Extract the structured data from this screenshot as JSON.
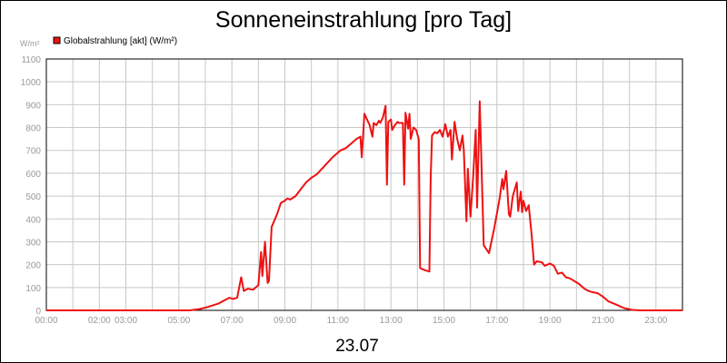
{
  "chart_data": {
    "type": "line",
    "title": "Sonneneinstrahlung [pro Tag]",
    "ylabel": "W/m²",
    "xlabel": "23.07",
    "ylim": [
      0,
      1100
    ],
    "xlim_hours": [
      0,
      24
    ],
    "grid": true,
    "legend_position": "top-left",
    "yticks": [
      "0",
      "100",
      "200",
      "300",
      "400",
      "500",
      "600",
      "700",
      "800",
      "900",
      "1000",
      "1100"
    ],
    "ytick_values": [
      0,
      100,
      200,
      300,
      400,
      500,
      600,
      700,
      800,
      900,
      1000,
      1100
    ],
    "xticks": [
      {
        "label": "00:00",
        "hour": 0
      },
      {
        "label": "02:00",
        "hour": 2
      },
      {
        "label": "03:00",
        "hour": 3
      },
      {
        "label": "05:00",
        "hour": 5
      },
      {
        "label": "07:00",
        "hour": 7
      },
      {
        "label": "09:00",
        "hour": 9
      },
      {
        "label": "11:00",
        "hour": 11
      },
      {
        "label": "13:00",
        "hour": 13
      },
      {
        "label": "15:00",
        "hour": 15
      },
      {
        "label": "17:00",
        "hour": 17
      },
      {
        "label": "19:00",
        "hour": 19
      },
      {
        "label": "21:00",
        "hour": 21
      },
      {
        "label": "23:00",
        "hour": 23
      }
    ],
    "series": [
      {
        "name": "Globalstrahlung [akt] (W/m²)",
        "color": "#ee1111",
        "points": [
          [
            0,
            0
          ],
          [
            5.4,
            0
          ],
          [
            5.8,
            6
          ],
          [
            6.1,
            15
          ],
          [
            6.5,
            30
          ],
          [
            6.9,
            55
          ],
          [
            7.05,
            50
          ],
          [
            7.2,
            55
          ],
          [
            7.35,
            145
          ],
          [
            7.45,
            85
          ],
          [
            7.6,
            95
          ],
          [
            7.8,
            90
          ],
          [
            8.0,
            110
          ],
          [
            8.1,
            255
          ],
          [
            8.15,
            150
          ],
          [
            8.25,
            300
          ],
          [
            8.35,
            120
          ],
          [
            8.4,
            130
          ],
          [
            8.5,
            365
          ],
          [
            8.7,
            420
          ],
          [
            8.85,
            470
          ],
          [
            9.0,
            480
          ],
          [
            9.1,
            490
          ],
          [
            9.2,
            485
          ],
          [
            9.4,
            500
          ],
          [
            9.6,
            530
          ],
          [
            9.8,
            560
          ],
          [
            10.0,
            580
          ],
          [
            10.2,
            595
          ],
          [
            10.4,
            620
          ],
          [
            10.6,
            645
          ],
          [
            10.8,
            670
          ],
          [
            11.0,
            690
          ],
          [
            11.1,
            700
          ],
          [
            11.3,
            710
          ],
          [
            11.5,
            730
          ],
          [
            11.7,
            750
          ],
          [
            11.85,
            760
          ],
          [
            11.9,
            670
          ],
          [
            12.0,
            860
          ],
          [
            12.1,
            835
          ],
          [
            12.2,
            810
          ],
          [
            12.3,
            760
          ],
          [
            12.35,
            820
          ],
          [
            12.45,
            810
          ],
          [
            12.55,
            830
          ],
          [
            12.6,
            820
          ],
          [
            12.7,
            845
          ],
          [
            12.8,
            895
          ],
          [
            12.85,
            550
          ],
          [
            12.9,
            825
          ],
          [
            13.0,
            835
          ],
          [
            13.05,
            790
          ],
          [
            13.15,
            810
          ],
          [
            13.25,
            825
          ],
          [
            13.3,
            820
          ],
          [
            13.45,
            820
          ],
          [
            13.5,
            550
          ],
          [
            13.55,
            865
          ],
          [
            13.6,
            830
          ],
          [
            13.65,
            795
          ],
          [
            13.7,
            860
          ],
          [
            13.75,
            750
          ],
          [
            13.85,
            800
          ],
          [
            13.95,
            790
          ],
          [
            14.05,
            750
          ],
          [
            14.1,
            185
          ],
          [
            14.3,
            175
          ],
          [
            14.45,
            170
          ],
          [
            14.5,
            575
          ],
          [
            14.55,
            765
          ],
          [
            14.65,
            780
          ],
          [
            14.75,
            775
          ],
          [
            14.85,
            790
          ],
          [
            14.95,
            760
          ],
          [
            15.05,
            815
          ],
          [
            15.15,
            760
          ],
          [
            15.25,
            790
          ],
          [
            15.3,
            660
          ],
          [
            15.4,
            825
          ],
          [
            15.5,
            750
          ],
          [
            15.6,
            700
          ],
          [
            15.7,
            765
          ],
          [
            15.75,
            700
          ],
          [
            15.85,
            390
          ],
          [
            15.9,
            620
          ],
          [
            16.0,
            410
          ],
          [
            16.1,
            580
          ],
          [
            16.2,
            790
          ],
          [
            16.25,
            450
          ],
          [
            16.35,
            915
          ],
          [
            16.5,
            285
          ],
          [
            16.7,
            250
          ],
          [
            16.9,
            360
          ],
          [
            17.1,
            490
          ],
          [
            17.2,
            575
          ],
          [
            17.25,
            530
          ],
          [
            17.35,
            610
          ],
          [
            17.45,
            420
          ],
          [
            17.5,
            410
          ],
          [
            17.6,
            500
          ],
          [
            17.75,
            560
          ],
          [
            17.8,
            435
          ],
          [
            17.9,
            520
          ],
          [
            17.95,
            430
          ],
          [
            18.0,
            480
          ],
          [
            18.1,
            435
          ],
          [
            18.2,
            460
          ],
          [
            18.3,
            340
          ],
          [
            18.4,
            200
          ],
          [
            18.5,
            215
          ],
          [
            18.7,
            210
          ],
          [
            18.8,
            195
          ],
          [
            19.0,
            205
          ],
          [
            19.15,
            195
          ],
          [
            19.3,
            160
          ],
          [
            19.45,
            165
          ],
          [
            19.6,
            145
          ],
          [
            19.75,
            140
          ],
          [
            19.9,
            130
          ],
          [
            20.1,
            115
          ],
          [
            20.3,
            95
          ],
          [
            20.45,
            85
          ],
          [
            20.6,
            80
          ],
          [
            20.8,
            75
          ],
          [
            21.0,
            60
          ],
          [
            21.2,
            40
          ],
          [
            21.5,
            25
          ],
          [
            21.8,
            10
          ],
          [
            22.1,
            2
          ],
          [
            22.4,
            0
          ],
          [
            24,
            0
          ]
        ]
      }
    ]
  }
}
